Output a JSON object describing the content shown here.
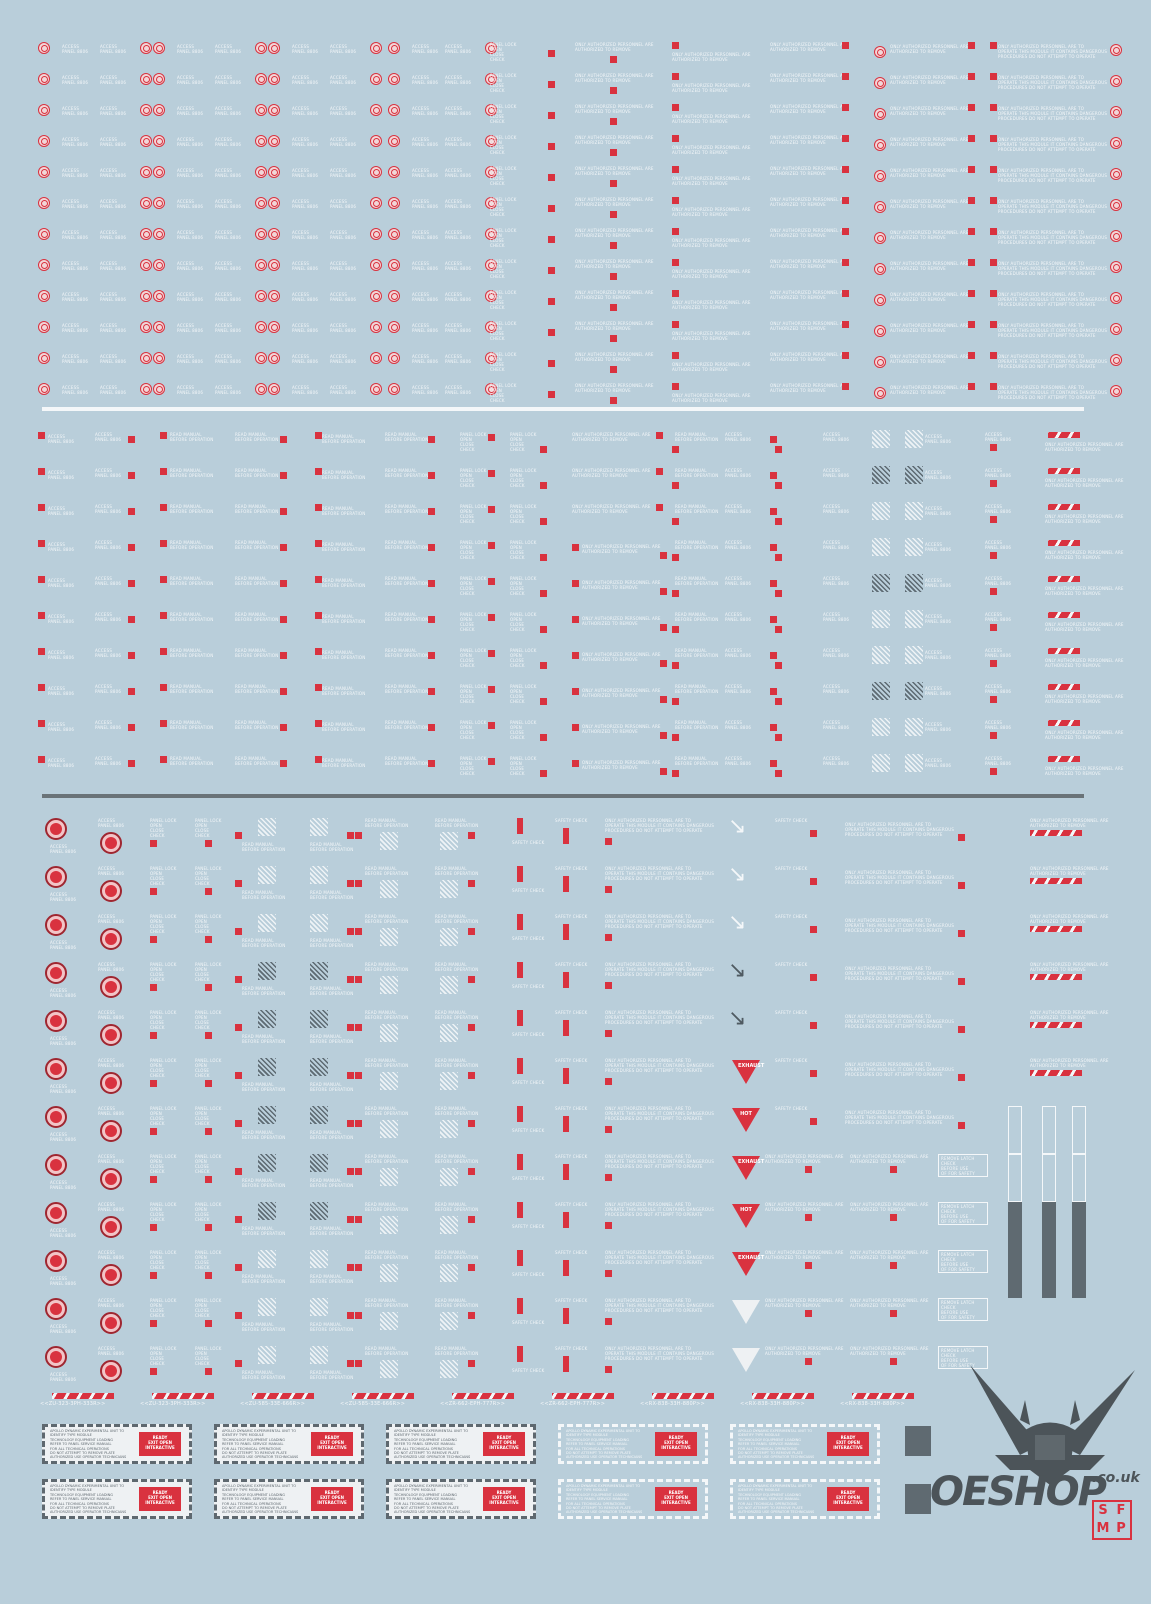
{
  "sheet": {
    "background_color": "#b9ceda",
    "accent_color": "#d9323f",
    "ink_white": "#f4f7f9",
    "ink_grey": "#5d6a72"
  },
  "labels": {
    "access_panel": "ACCESS\nPANEL 8806",
    "read_manual": "READ MANUAL\nBEFORE OPERATION",
    "panel_lock": "PANEL LOCK\nOPEN\nCLOSE\nCHECK",
    "warning_line": "ONLY AUTHORIZED PERSONNEL ARE TO\nOPERATE THIS MODULE IT CONTAINS DANGEROUS\nPROCEDURES DO NOT ATTEMPT TO OPERATE",
    "hazard_caption": "ONLY AUTHORIZED PERSONNEL ARE\nAUTHORIZED TO REMOVE",
    "remove_latch": "REMOVE LATCH\nCHECK\nBEFORE USE\nOF FOR SAFETY",
    "safety_check": "SAFETY CHECK",
    "hot": "HOT",
    "exhaust": "EXHAUST",
    "ready_box": "READY\nEXIT OPEN\nINTERACTIVE",
    "panel_text": "APOLLO DYNAMIC EXPERIMENTAL UNIT TO\nIDENTIFY TYPE MODULE\nTECHNOLOGY EQUIPMENT LOADING\nREFER TO PANEL SERVICE MANUAL\nFOR ALL TECHNICAL OPERATIONS\nDO NOT ATTEMPT TO REMOVE PLATE\nAUTHORIZED USE OPERATOR TECHNICIANS"
  },
  "serials": [
    "<<ZU-323-3PH-333R>>",
    "<<ZU-323-3PH-333R>>",
    "<<ZU-585-33E-666R>>",
    "<<ZU-585-33E-666R>>",
    "<<ZR-662-EPH-777R>>",
    "<<ZR-662-EPH-777R>>",
    "<<RX-838-33H-880P>>",
    "<<RX-838-33H-880P>>",
    "<<RX-838-33H-880P>>"
  ],
  "watermark": {
    "brand": "OESHOP",
    "domain": ".co.uk",
    "badge": [
      "S",
      "F",
      "M",
      "P"
    ]
  }
}
